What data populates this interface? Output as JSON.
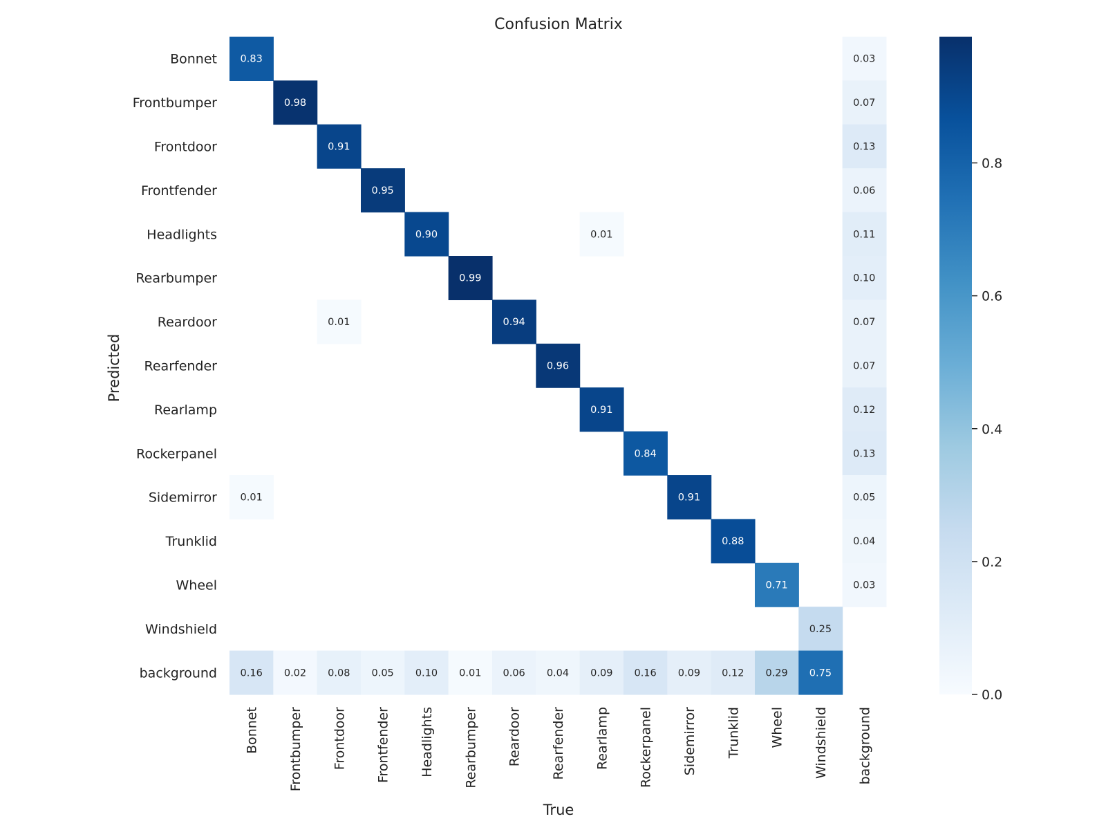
{
  "chart_data": {
    "type": "heatmap",
    "title": "Confusion Matrix",
    "xlabel": "True",
    "ylabel": "Predicted",
    "x_categories": [
      "Bonnet",
      "Frontbumper",
      "Frontdoor",
      "Frontfender",
      "Headlights",
      "Rearbumper",
      "Reardoor",
      "Rearfender",
      "Rearlamp",
      "Rockerpanel",
      "Sidemirror",
      "Trunklid",
      "Wheel",
      "Windshield",
      "background"
    ],
    "y_categories": [
      "Bonnet",
      "Frontbumper",
      "Frontdoor",
      "Frontfender",
      "Headlights",
      "Rearbumper",
      "Reardoor",
      "Rearfender",
      "Rearlamp",
      "Rockerpanel",
      "Sidemirror",
      "Trunklid",
      "Wheel",
      "Windshield",
      "background"
    ],
    "matrix": [
      [
        0.83,
        null,
        null,
        null,
        null,
        null,
        null,
        null,
        null,
        null,
        null,
        null,
        null,
        null,
        0.03
      ],
      [
        null,
        0.98,
        null,
        null,
        null,
        null,
        null,
        null,
        null,
        null,
        null,
        null,
        null,
        null,
        0.07
      ],
      [
        null,
        null,
        0.91,
        null,
        null,
        null,
        null,
        null,
        null,
        null,
        null,
        null,
        null,
        null,
        0.13
      ],
      [
        null,
        null,
        null,
        0.95,
        null,
        null,
        null,
        null,
        null,
        null,
        null,
        null,
        null,
        null,
        0.06
      ],
      [
        null,
        null,
        null,
        null,
        0.9,
        null,
        null,
        null,
        0.01,
        null,
        null,
        null,
        null,
        null,
        0.11
      ],
      [
        null,
        null,
        null,
        null,
        null,
        0.99,
        null,
        null,
        null,
        null,
        null,
        null,
        null,
        null,
        0.1
      ],
      [
        null,
        null,
        0.01,
        null,
        null,
        null,
        0.94,
        null,
        null,
        null,
        null,
        null,
        null,
        null,
        0.07
      ],
      [
        null,
        null,
        null,
        null,
        null,
        null,
        null,
        0.96,
        null,
        null,
        null,
        null,
        null,
        null,
        0.07
      ],
      [
        null,
        null,
        null,
        null,
        null,
        null,
        null,
        null,
        0.91,
        null,
        null,
        null,
        null,
        null,
        0.12
      ],
      [
        null,
        null,
        null,
        null,
        null,
        null,
        null,
        null,
        null,
        0.84,
        null,
        null,
        null,
        null,
        0.13
      ],
      [
        0.01,
        null,
        null,
        null,
        null,
        null,
        null,
        null,
        null,
        null,
        0.91,
        null,
        null,
        null,
        0.05
      ],
      [
        null,
        null,
        null,
        null,
        null,
        null,
        null,
        null,
        null,
        null,
        null,
        0.88,
        null,
        null,
        0.04
      ],
      [
        null,
        null,
        null,
        null,
        null,
        null,
        null,
        null,
        null,
        null,
        null,
        null,
        0.71,
        null,
        0.03
      ],
      [
        null,
        null,
        null,
        null,
        null,
        null,
        null,
        null,
        null,
        null,
        null,
        null,
        null,
        0.25,
        null
      ],
      [
        0.16,
        0.02,
        0.08,
        0.05,
        0.1,
        0.01,
        0.06,
        0.04,
        0.09,
        0.16,
        0.09,
        0.12,
        0.29,
        0.75,
        null
      ]
    ],
    "colorbar": {
      "range": [
        0.0,
        0.99
      ],
      "ticks": [
        0.0,
        0.2,
        0.4,
        0.6,
        0.8
      ],
      "tick_labels": [
        "0.0",
        "0.2",
        "0.4",
        "0.6",
        "0.8"
      ]
    },
    "colormap_stops": [
      "#f7fbff",
      "#deebf7",
      "#c6dbef",
      "#9ecae1",
      "#6baed6",
      "#4292c6",
      "#2171b5",
      "#08519c",
      "#08306b"
    ]
  }
}
